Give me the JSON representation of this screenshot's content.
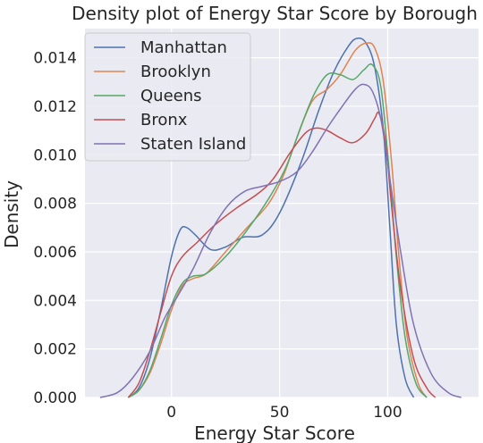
{
  "chart_data": {
    "type": "line",
    "title": "Density plot of Energy Star Score by Borough",
    "xlabel": "Energy Star Score",
    "ylabel": "Density",
    "xlim": [
      -40,
      142
    ],
    "ylim": [
      0,
      0.0152
    ],
    "x_ticks": [
      0,
      50,
      100
    ],
    "x_tick_labels": [
      "0",
      "50",
      "100"
    ],
    "y_ticks": [
      0,
      0.002,
      0.004,
      0.006,
      0.008,
      0.01,
      0.012,
      0.014
    ],
    "y_tick_labels": [
      "0.000",
      "0.002",
      "0.004",
      "0.006",
      "0.008",
      "0.010",
      "0.012",
      "0.014"
    ],
    "grid": true,
    "background": "#eaeaf2",
    "legend_position": "top-left",
    "series": [
      {
        "name": "Manhattan",
        "color": "#4c72b0",
        "points": [
          [
            -20,
            0
          ],
          [
            -15,
            0.0004
          ],
          [
            -10,
            0.0016
          ],
          [
            -5,
            0.0036
          ],
          [
            0,
            0.0058
          ],
          [
            4,
            0.0069
          ],
          [
            7,
            0.007
          ],
          [
            11,
            0.0067
          ],
          [
            18,
            0.0061
          ],
          [
            25,
            0.0062
          ],
          [
            33,
            0.0066
          ],
          [
            42,
            0.0067
          ],
          [
            50,
            0.0076
          ],
          [
            60,
            0.0097
          ],
          [
            68,
            0.0118
          ],
          [
            75,
            0.0134
          ],
          [
            82,
            0.0145
          ],
          [
            86,
            0.0148
          ],
          [
            90,
            0.0146
          ],
          [
            94,
            0.0136
          ],
          [
            98,
            0.011
          ],
          [
            101,
            0.007
          ],
          [
            104,
            0.003
          ],
          [
            108,
            0.0008
          ],
          [
            112,
            0
          ]
        ]
      },
      {
        "name": "Brooklyn",
        "color": "#dd8452",
        "points": [
          [
            -20,
            0
          ],
          [
            -15,
            0.0003
          ],
          [
            -10,
            0.001
          ],
          [
            -5,
            0.0022
          ],
          [
            0,
            0.0036
          ],
          [
            5,
            0.0046
          ],
          [
            10,
            0.0049
          ],
          [
            16,
            0.0051
          ],
          [
            25,
            0.006
          ],
          [
            35,
            0.007
          ],
          [
            45,
            0.008
          ],
          [
            52,
            0.0092
          ],
          [
            58,
            0.0107
          ],
          [
            65,
            0.0122
          ],
          [
            72,
            0.0127
          ],
          [
            78,
            0.0133
          ],
          [
            85,
            0.0143
          ],
          [
            90,
            0.0146
          ],
          [
            94,
            0.0144
          ],
          [
            98,
            0.013
          ],
          [
            102,
            0.0095
          ],
          [
            105,
            0.006
          ],
          [
            109,
            0.0025
          ],
          [
            114,
            0.0006
          ],
          [
            118,
            0
          ]
        ]
      },
      {
        "name": "Queens",
        "color": "#55a868",
        "points": [
          [
            -20,
            0
          ],
          [
            -15,
            0.0003
          ],
          [
            -10,
            0.0011
          ],
          [
            -5,
            0.0024
          ],
          [
            0,
            0.0038
          ],
          [
            5,
            0.0047
          ],
          [
            10,
            0.005
          ],
          [
            16,
            0.0051
          ],
          [
            25,
            0.0058
          ],
          [
            35,
            0.0069
          ],
          [
            45,
            0.0082
          ],
          [
            53,
            0.0095
          ],
          [
            60,
            0.0112
          ],
          [
            66,
            0.0125
          ],
          [
            72,
            0.0133
          ],
          [
            78,
            0.0133
          ],
          [
            84,
            0.0131
          ],
          [
            89,
            0.0135
          ],
          [
            93,
            0.0137
          ],
          [
            97,
            0.0127
          ],
          [
            101,
            0.009
          ],
          [
            104,
            0.0058
          ],
          [
            108,
            0.0025
          ],
          [
            113,
            0.0006
          ],
          [
            118,
            0
          ]
        ]
      },
      {
        "name": "Bronx",
        "color": "#c44e52",
        "points": [
          [
            -20,
            0
          ],
          [
            -15,
            0.0006
          ],
          [
            -10,
            0.0019
          ],
          [
            -5,
            0.0035
          ],
          [
            0,
            0.005
          ],
          [
            5,
            0.0058
          ],
          [
            12,
            0.0064
          ],
          [
            20,
            0.0071
          ],
          [
            30,
            0.0078
          ],
          [
            40,
            0.0084
          ],
          [
            47,
            0.009
          ],
          [
            55,
            0.0101
          ],
          [
            62,
            0.0109
          ],
          [
            67,
            0.0111
          ],
          [
            72,
            0.011
          ],
          [
            78,
            0.0107
          ],
          [
            84,
            0.0105
          ],
          [
            90,
            0.0109
          ],
          [
            94,
            0.0115
          ],
          [
            96,
            0.0117
          ],
          [
            99,
            0.0105
          ],
          [
            102,
            0.0077
          ],
          [
            106,
            0.0045
          ],
          [
            112,
            0.0016
          ],
          [
            118,
            0.0004
          ],
          [
            122,
            0
          ]
        ]
      },
      {
        "name": "Staten Island",
        "color": "#8172b3",
        "points": [
          [
            -33,
            0
          ],
          [
            -25,
            0.0002
          ],
          [
            -18,
            0.0008
          ],
          [
            -10,
            0.0019
          ],
          [
            -3,
            0.0033
          ],
          [
            3,
            0.0042
          ],
          [
            10,
            0.0053
          ],
          [
            18,
            0.0068
          ],
          [
            26,
            0.0079
          ],
          [
            34,
            0.0085
          ],
          [
            42,
            0.0087
          ],
          [
            50,
            0.0089
          ],
          [
            58,
            0.0093
          ],
          [
            65,
            0.0101
          ],
          [
            72,
            0.0111
          ],
          [
            79,
            0.012
          ],
          [
            85,
            0.0127
          ],
          [
            89,
            0.0129
          ],
          [
            93,
            0.0126
          ],
          [
            97,
            0.0114
          ],
          [
            101,
            0.009
          ],
          [
            106,
            0.006
          ],
          [
            112,
            0.003
          ],
          [
            120,
            0.001
          ],
          [
            128,
            0.0002
          ],
          [
            134,
            0
          ]
        ]
      }
    ]
  }
}
